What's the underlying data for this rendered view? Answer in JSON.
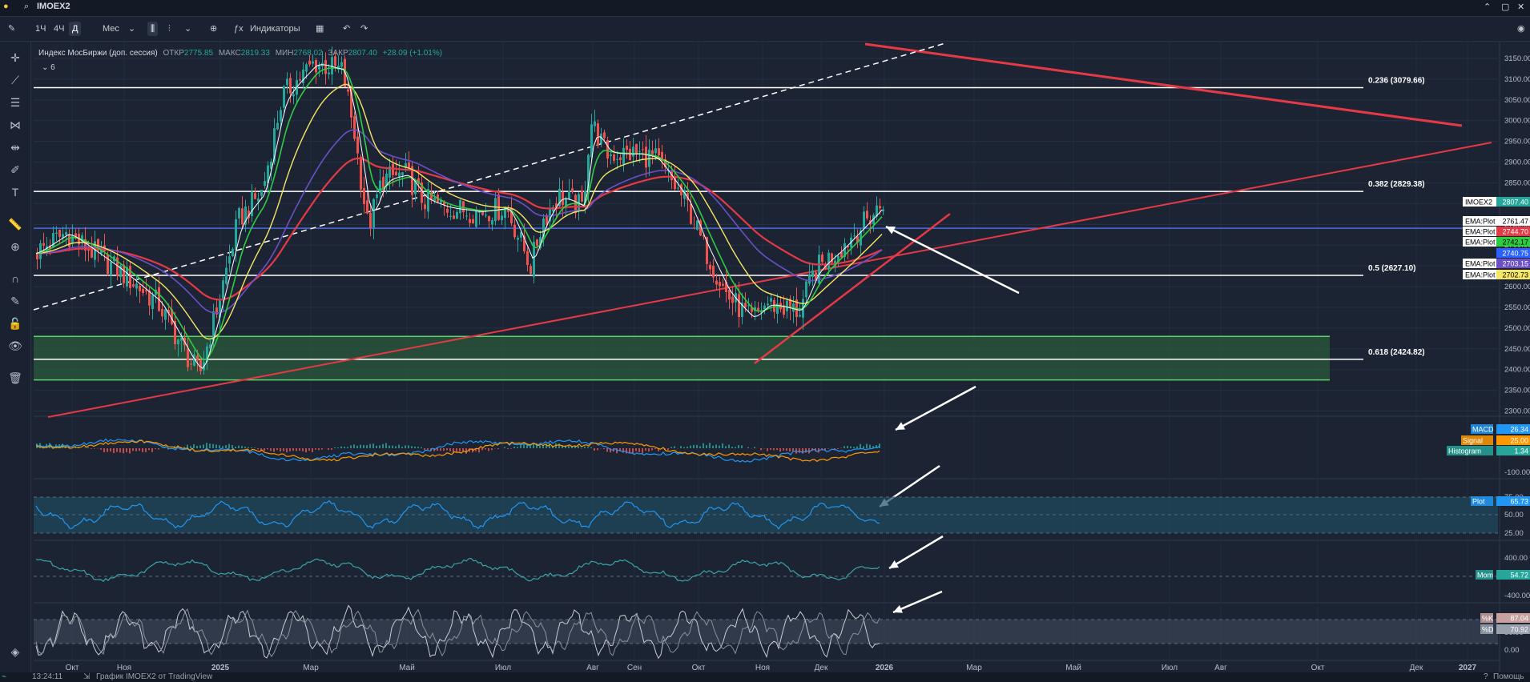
{
  "window": {
    "symbol": "IMOEX2"
  },
  "toolbar": {
    "intervals": [
      "1Ч",
      "4Ч",
      "Д",
      "Мес"
    ],
    "active_interval": "Д",
    "indicators_label": "Индикаторы"
  },
  "legend": {
    "name": "Индекс МосБиржи (доп. сессия)",
    "open_label": "ОТКР",
    "open": "2775.85",
    "high_label": "МАКС",
    "high": "2819.33",
    "low_label": "МИН",
    "low": "2768.02",
    "close_label": "ЗАКР",
    "close": "2807.40",
    "change": "+28.09 (+1.01%)",
    "collapse_count": "6"
  },
  "colors": {
    "background": "#1c2433",
    "up": "#26a69a",
    "down": "#ef5350",
    "ema_red": "#e53945",
    "ema_green": "#2ecc40",
    "ema_yellow": "#f5e663",
    "ema_purple": "#6a4fc7",
    "ema_white": "#ffffff",
    "support_band": "#2a5a3c"
  },
  "chart_data": {
    "type": "line",
    "symbol": "IMOEX2",
    "price_axis": {
      "ticks": [
        3150,
        3100,
        3050,
        3000,
        2950,
        2900,
        2850,
        2800,
        2750,
        2700,
        2650,
        2600,
        2550,
        2500,
        2450,
        2400,
        2350,
        2300
      ],
      "labels": [
        "3150.00",
        "3100.00",
        "3050.00",
        "3000.00",
        "2950.00",
        "2900.00",
        "2850.00",
        "2800.00",
        "2750.00",
        "2700.00",
        "2650.00",
        "2600.00",
        "2550.00",
        "2500.00",
        "2450.00",
        "2400.00",
        "2350.00",
        "2300.00"
      ]
    },
    "time_axis": [
      "Окт",
      "Ноя",
      "2025",
      "Мар",
      "Май",
      "Июл",
      "Авг",
      "Сен",
      "Окт",
      "Ноя",
      "Дек",
      "2026",
      "Мар",
      "Май",
      "Июл",
      "Авг",
      "Окт",
      "Дек",
      "2027"
    ],
    "fib_levels": [
      {
        "label": "0.236 (3079.66)",
        "value": 3079.66
      },
      {
        "label": "0.382 (2829.38)",
        "value": 2829.38
      },
      {
        "label": "0.5 (2627.10)",
        "value": 2627.1
      },
      {
        "label": "0.618 (2424.82)",
        "value": 2424.82
      }
    ],
    "support_zone": [
      2375,
      2480
    ],
    "horizontal_line": 2740.75,
    "last_values": [
      {
        "name": "IMOEX2",
        "value": "2807.40",
        "color": "#26a69a",
        "text": "#ffffff"
      },
      {
        "name": "EMA:Plot",
        "value": "2761.47",
        "color": "#ffffff",
        "text": "#000000"
      },
      {
        "name": "EMA:Plot",
        "value": "2744.70",
        "color": "#e53945",
        "text": "#ffffff"
      },
      {
        "name": "EMA:Plot",
        "value": "2742.17",
        "color": "#2ecc40",
        "text": "#000000"
      },
      {
        "name": "",
        "value": "2740.75",
        "color": "#2962ff",
        "text": "#ffffff"
      },
      {
        "name": "EMA:Plot",
        "value": "2703.15",
        "color": "#6a4fc7",
        "text": "#ffffff"
      },
      {
        "name": "EMA:Plot",
        "value": "2702.73",
        "color": "#f5e663",
        "text": "#000000"
      }
    ],
    "panes": [
      {
        "id": "macd",
        "axis_labels": [
          "-100.00"
        ],
        "values": [
          {
            "name": "MACD",
            "value": "26.34",
            "color": "#2196f3"
          },
          {
            "name": "Signal",
            "value": "25.00",
            "color": "#ff9800"
          },
          {
            "name": "Histogram",
            "value": "1.34",
            "color": "#26a69a"
          }
        ]
      },
      {
        "id": "rsi",
        "axis_labels": [
          "75.00",
          "50.00",
          "25.00"
        ],
        "values": [
          {
            "name": "Plot",
            "value": "65.73",
            "color": "#2196f3"
          }
        ]
      },
      {
        "id": "momentum",
        "axis_labels": [
          "400.00",
          "0.00",
          "-400.00"
        ],
        "values": [
          {
            "name": "Mom",
            "value": "54.72",
            "color": "#26a69a"
          }
        ]
      },
      {
        "id": "stoch",
        "axis_labels": [
          "100.00",
          "50.00",
          "0.00"
        ],
        "values": [
          {
            "name": "%K",
            "value": "87.04",
            "color": "#c8a0a0"
          },
          {
            "name": "%D",
            "value": "70.92",
            "color": "#9aa1ad"
          }
        ]
      }
    ]
  },
  "status": {
    "time": "13:24:11",
    "credit": "График IMOEX2 от TradingView",
    "help": "Помощь"
  }
}
